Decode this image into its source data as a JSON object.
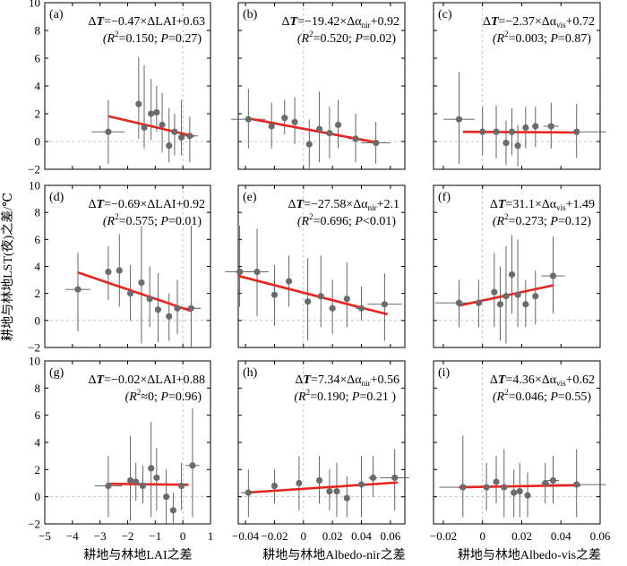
{
  "ylabel": "耕地与林地LST(夜)之差/℃",
  "xlabels": [
    "耕地与林地LAI之差",
    "耕地与林地Albedo-nir之差",
    "耕地与林地Albedo-vis之差"
  ],
  "colors": {
    "point": "#6b6b6b",
    "fit": "#e8241f",
    "ref": "#b8b8b8",
    "err": "#555555"
  },
  "chart_data": [
    {
      "id": "a",
      "tag": "(a)",
      "col": 0,
      "row": 0,
      "type": "scatter",
      "eq_pre": "Δ",
      "eq_var": "T",
      "eq_mid": "=−0.47×ΔLAI+0.63",
      "stats_r": "(R",
      "stats_rest": "=0.150; ",
      "stats_p": "P",
      "stats_pval": "=0.27)",
      "xlim": [
        -5,
        1
      ],
      "ylim": [
        -2,
        10
      ],
      "fit": {
        "x1": -2.7,
        "y1": 1.82,
        "x2": 0.4,
        "y2": 0.38
      },
      "points": [
        {
          "x": -2.7,
          "y": 0.7,
          "xerr": 0.6,
          "ylo": -1.6,
          "yhi": 3.0
        },
        {
          "x": -1.6,
          "y": 2.7,
          "xerr": 0.05,
          "ylo": 0.2,
          "yhi": 6.1
        },
        {
          "x": -1.4,
          "y": 1.0,
          "xerr": 0.05,
          "ylo": -0.5,
          "yhi": 5.5
        },
        {
          "x": -1.15,
          "y": 2.0,
          "xerr": 0.05,
          "ylo": 0.1,
          "yhi": 4.5
        },
        {
          "x": -0.95,
          "y": 2.1,
          "xerr": 0.05,
          "ylo": 0.7,
          "yhi": 4.0
        },
        {
          "x": -0.75,
          "y": 1.2,
          "xerr": 0.05,
          "ylo": -0.8,
          "yhi": 3.5
        },
        {
          "x": -0.5,
          "y": -0.3,
          "xerr": 0.05,
          "ylo": -1.5,
          "yhi": 2.4
        },
        {
          "x": -0.3,
          "y": 0.7,
          "xerr": 0.05,
          "ylo": -1.0,
          "yhi": 2.0
        },
        {
          "x": -0.05,
          "y": 0.3,
          "xerr": 0.05,
          "ylo": -1.0,
          "yhi": 3.0
        },
        {
          "x": 0.25,
          "y": 0.4,
          "xerr": 0.3,
          "ylo": -1.5,
          "yhi": 1.8
        }
      ]
    },
    {
      "id": "b",
      "tag": "(b)",
      "col": 1,
      "row": 0,
      "type": "scatter",
      "eq_pre": "Δ",
      "eq_var": "T",
      "eq_mid": "=−19.42×Δα",
      "eq_sub": "nir",
      "eq_post": "+0.92",
      "stats_r": "(R",
      "stats_rest": "=0.520; ",
      "stats_p": "P",
      "stats_pval": "=0.02)",
      "xlim": [
        -0.045,
        0.07
      ],
      "ylim": [
        -2,
        10
      ],
      "fit": {
        "x1": -0.04,
        "y1": 1.7,
        "x2": 0.052,
        "y2": -0.1
      },
      "points": [
        {
          "x": -0.038,
          "y": 1.6,
          "xerr": 0.012,
          "ylo": -0.5,
          "yhi": 3.8
        },
        {
          "x": -0.022,
          "y": 1.1,
          "xerr": 0.002,
          "ylo": -0.5,
          "yhi": 2.8
        },
        {
          "x": -0.013,
          "y": 1.7,
          "xerr": 0.002,
          "ylo": 0.5,
          "yhi": 3.0
        },
        {
          "x": -0.006,
          "y": 1.4,
          "xerr": 0.002,
          "ylo": -0.2,
          "yhi": 3.2
        },
        {
          "x": 0.004,
          "y": -0.2,
          "xerr": 0.002,
          "ylo": -2.0,
          "yhi": 1.6
        },
        {
          "x": 0.011,
          "y": 0.9,
          "xerr": 0.002,
          "ylo": -1.5,
          "yhi": 3.6
        },
        {
          "x": 0.018,
          "y": 0.6,
          "xerr": 0.002,
          "ylo": -1.2,
          "yhi": 2.5
        },
        {
          "x": 0.024,
          "y": 1.2,
          "xerr": 0.002,
          "ylo": -0.5,
          "yhi": 3.0
        },
        {
          "x": 0.036,
          "y": 0.2,
          "xerr": 0.005,
          "ylo": -1.5,
          "yhi": 2.0
        },
        {
          "x": 0.05,
          "y": -0.1,
          "xerr": 0.01,
          "ylo": -1.6,
          "yhi": 1.4
        }
      ]
    },
    {
      "id": "c",
      "tag": "(c)",
      "col": 2,
      "row": 0,
      "type": "scatter",
      "eq_pre": "Δ",
      "eq_var": "T",
      "eq_mid": "=−2.37×Δα",
      "eq_sub": "vis",
      "eq_post": "+0.72",
      "stats_r": "(R",
      "stats_rest": "=0.003; ",
      "stats_p": "P",
      "stats_pval": "=0.87)",
      "xlim": [
        -0.025,
        0.06
      ],
      "ylim": [
        -2,
        10
      ],
      "fit": {
        "x1": -0.01,
        "y1": 0.7,
        "x2": 0.048,
        "y2": 0.65
      },
      "points": [
        {
          "x": -0.012,
          "y": 1.6,
          "xerr": 0.008,
          "ylo": -1.6,
          "yhi": 5.0
        },
        {
          "x": 0.0,
          "y": 0.7,
          "xerr": 0.001,
          "ylo": -1.0,
          "yhi": 2.5
        },
        {
          "x": 0.007,
          "y": 0.7,
          "xerr": 0.001,
          "ylo": -1.2,
          "yhi": 2.6
        },
        {
          "x": 0.012,
          "y": -0.1,
          "xerr": 0.001,
          "ylo": -1.7,
          "yhi": 1.5
        },
        {
          "x": 0.015,
          "y": 0.7,
          "xerr": 0.001,
          "ylo": -1.0,
          "yhi": 2.4
        },
        {
          "x": 0.018,
          "y": -0.3,
          "xerr": 0.001,
          "ylo": -1.8,
          "yhi": 1.2
        },
        {
          "x": 0.022,
          "y": 1.0,
          "xerr": 0.001,
          "ylo": -0.5,
          "yhi": 2.5
        },
        {
          "x": 0.027,
          "y": 1.1,
          "xerr": 0.001,
          "ylo": -0.4,
          "yhi": 2.5
        },
        {
          "x": 0.035,
          "y": 1.1,
          "xerr": 0.004,
          "ylo": -0.5,
          "yhi": 2.8
        },
        {
          "x": 0.048,
          "y": 0.7,
          "xerr": 0.015,
          "ylo": -1.2,
          "yhi": 2.7
        }
      ]
    },
    {
      "id": "d",
      "tag": "(d)",
      "col": 0,
      "row": 1,
      "type": "scatter",
      "eq_pre": "Δ",
      "eq_var": "T",
      "eq_mid": "=−0.69×ΔLAI+0.92",
      "stats_r": "(R",
      "stats_rest": "=0.575; ",
      "stats_p": "P",
      "stats_pval": "=0.01)",
      "xlim": [
        -5,
        1
      ],
      "ylim": [
        -2,
        10
      ],
      "fit": {
        "x1": -3.8,
        "y1": 3.55,
        "x2": 0.3,
        "y2": 0.7
      },
      "points": [
        {
          "x": -3.8,
          "y": 2.3,
          "xerr": 0.45,
          "ylo": -0.8,
          "yhi": 5.0
        },
        {
          "x": -2.7,
          "y": 3.6,
          "xerr": 0.05,
          "ylo": 1.5,
          "yhi": 5.5
        },
        {
          "x": -2.3,
          "y": 3.7,
          "xerr": 0.05,
          "ylo": 1.0,
          "yhi": 6.4
        },
        {
          "x": -1.9,
          "y": 2.0,
          "xerr": 0.05,
          "ylo": 0.0,
          "yhi": 4.1
        },
        {
          "x": -1.5,
          "y": 2.8,
          "xerr": 0.05,
          "ylo": -1.7,
          "yhi": 7.0
        },
        {
          "x": -1.2,
          "y": 1.6,
          "xerr": 0.05,
          "ylo": -0.5,
          "yhi": 4.0
        },
        {
          "x": -0.9,
          "y": 0.8,
          "xerr": 0.05,
          "ylo": -1.6,
          "yhi": 3.5
        },
        {
          "x": -0.5,
          "y": 0.3,
          "xerr": 0.05,
          "ylo": -1.5,
          "yhi": 2.0
        },
        {
          "x": -0.2,
          "y": 0.9,
          "xerr": 0.05,
          "ylo": -1.0,
          "yhi": 3.0
        },
        {
          "x": 0.3,
          "y": 0.9,
          "xerr": 0.35,
          "ylo": -2.0,
          "yhi": 7.0
        }
      ]
    },
    {
      "id": "e",
      "tag": "(e)",
      "col": 1,
      "row": 1,
      "type": "scatter",
      "eq_pre": "Δ",
      "eq_var": "T",
      "eq_mid": "=−27.58×Δα",
      "eq_sub": "nir",
      "eq_post": "+2.1",
      "stats_r": "(R",
      "stats_rest": "=0.696; ",
      "stats_p": "P",
      "stats_pval": "<0.01)",
      "xlim": [
        -0.045,
        0.07
      ],
      "ylim": [
        -2,
        10
      ],
      "fit": {
        "x1": -0.045,
        "y1": 3.3,
        "x2": 0.058,
        "y2": 0.45
      },
      "points": [
        {
          "x": -0.044,
          "y": 3.6,
          "xerr": 0.01,
          "ylo": 1.0,
          "yhi": 7.0
        },
        {
          "x": -0.032,
          "y": 3.6,
          "xerr": 0.008,
          "ylo": 0.3,
          "yhi": 6.8
        },
        {
          "x": -0.02,
          "y": 1.9,
          "xerr": 0.002,
          "ylo": -0.4,
          "yhi": 4.1
        },
        {
          "x": -0.01,
          "y": 2.9,
          "xerr": 0.002,
          "ylo": 1.0,
          "yhi": 4.8
        },
        {
          "x": 0.003,
          "y": 1.4,
          "xerr": 0.002,
          "ylo": -1.5,
          "yhi": 4.6
        },
        {
          "x": 0.012,
          "y": 1.8,
          "xerr": 0.002,
          "ylo": -0.5,
          "yhi": 4.8
        },
        {
          "x": 0.02,
          "y": 0.9,
          "xerr": 0.002,
          "ylo": -1.0,
          "yhi": 3.0
        },
        {
          "x": 0.03,
          "y": 1.6,
          "xerr": 0.002,
          "ylo": -0.5,
          "yhi": 4.3
        },
        {
          "x": 0.04,
          "y": 0.9,
          "xerr": 0.004,
          "ylo": 0.0,
          "yhi": 2.5
        },
        {
          "x": 0.056,
          "y": 1.2,
          "xerr": 0.012,
          "ylo": -1.5,
          "yhi": 3.5
        }
      ]
    },
    {
      "id": "f",
      "tag": "(f)",
      "col": 2,
      "row": 1,
      "type": "scatter",
      "eq_pre": "Δ",
      "eq_var": "T",
      "eq_mid": "=31.1×Δα",
      "eq_sub": "vis",
      "eq_post": "+1.49",
      "stats_r": "(R",
      "stats_rest": "=0.273; ",
      "stats_p": "P",
      "stats_pval": "=0.12)",
      "xlim": [
        -0.025,
        0.06
      ],
      "ylim": [
        -2,
        10
      ],
      "fit": {
        "x1": -0.012,
        "y1": 1.1,
        "x2": 0.036,
        "y2": 2.6
      },
      "points": [
        {
          "x": -0.012,
          "y": 1.3,
          "xerr": 0.012,
          "ylo": -0.5,
          "yhi": 3.0
        },
        {
          "x": -0.002,
          "y": 1.3,
          "xerr": 0.001,
          "ylo": -0.5,
          "yhi": 3.0
        },
        {
          "x": 0.006,
          "y": 2.1,
          "xerr": 0.001,
          "ylo": -0.5,
          "yhi": 5.0
        },
        {
          "x": 0.009,
          "y": 1.2,
          "xerr": 0.001,
          "ylo": -1.5,
          "yhi": 4.0
        },
        {
          "x": 0.012,
          "y": 1.8,
          "xerr": 0.001,
          "ylo": -1.7,
          "yhi": 5.5
        },
        {
          "x": 0.015,
          "y": 3.4,
          "xerr": 0.001,
          "ylo": 0.5,
          "yhi": 6.3
        },
        {
          "x": 0.018,
          "y": 1.9,
          "xerr": 0.001,
          "ylo": -0.5,
          "yhi": 6.0
        },
        {
          "x": 0.022,
          "y": 1.2,
          "xerr": 0.001,
          "ylo": -0.5,
          "yhi": 3.0
        },
        {
          "x": 0.027,
          "y": 1.8,
          "xerr": 0.001,
          "ylo": -0.3,
          "yhi": 3.7
        },
        {
          "x": 0.036,
          "y": 3.3,
          "xerr": 0.006,
          "ylo": 0.5,
          "yhi": 6.2
        }
      ]
    },
    {
      "id": "g",
      "tag": "(g)",
      "col": 0,
      "row": 2,
      "type": "scatter",
      "eq_pre": "Δ",
      "eq_var": "T",
      "eq_mid": "=−0.02×ΔLAI+0.88",
      "stats_r": "(R",
      "stats_rest": "≈0; ",
      "stats_p": "P",
      "stats_pval": "=0.96)",
      "xlim": [
        -5,
        1
      ],
      "ylim": [
        -2,
        10
      ],
      "fit": {
        "x1": -2.7,
        "y1": 0.95,
        "x2": 0.2,
        "y2": 0.88
      },
      "points": [
        {
          "x": -2.7,
          "y": 0.8,
          "xerr": 0.5,
          "ylo": -1.5,
          "yhi": 3.0
        },
        {
          "x": -1.9,
          "y": 1.2,
          "xerr": 0.05,
          "ylo": -1.8,
          "yhi": 4.5
        },
        {
          "x": -1.7,
          "y": 1.1,
          "xerr": 0.05,
          "ylo": -0.3,
          "yhi": 2.5
        },
        {
          "x": -1.45,
          "y": 0.8,
          "xerr": 0.05,
          "ylo": -0.5,
          "yhi": 2.3
        },
        {
          "x": -1.15,
          "y": 2.1,
          "xerr": 0.05,
          "ylo": -1.5,
          "yhi": 5.5
        },
        {
          "x": -0.95,
          "y": 1.4,
          "xerr": 0.05,
          "ylo": -1.0,
          "yhi": 3.6
        },
        {
          "x": -0.6,
          "y": 0.0,
          "xerr": 0.05,
          "ylo": -2.0,
          "yhi": 2.0
        },
        {
          "x": -0.35,
          "y": -1.0,
          "xerr": 0.05,
          "ylo": -2.0,
          "yhi": 0.3
        },
        {
          "x": -0.05,
          "y": 0.8,
          "xerr": 0.05,
          "ylo": -1.0,
          "yhi": 2.5
        },
        {
          "x": 0.35,
          "y": 2.3,
          "xerr": 0.25,
          "ylo": -1.5,
          "yhi": 6.5
        }
      ]
    },
    {
      "id": "h",
      "tag": "(h)",
      "col": 1,
      "row": 2,
      "type": "scatter",
      "eq_pre": "Δ",
      "eq_var": "T",
      "eq_mid": "=7.34×Δα",
      "eq_sub": "nir",
      "eq_post": "+0.56",
      "stats_r": "(R",
      "stats_rest": "=0.190; ",
      "stats_p": "P",
      "stats_pval": "=0.21 )",
      "xlim": [
        -0.045,
        0.07
      ],
      "ylim": [
        -2,
        10
      ],
      "fit": {
        "x1": -0.04,
        "y1": 0.3,
        "x2": 0.065,
        "y2": 1.05
      },
      "points": [
        {
          "x": -0.038,
          "y": 0.3,
          "xerr": 0.005,
          "ylo": -1.5,
          "yhi": 2.0
        },
        {
          "x": -0.02,
          "y": 0.8,
          "xerr": 0.002,
          "ylo": -0.5,
          "yhi": 2.0
        },
        {
          "x": -0.003,
          "y": 1.0,
          "xerr": 0.002,
          "ylo": -1.0,
          "yhi": 3.0
        },
        {
          "x": 0.011,
          "y": 1.2,
          "xerr": 0.002,
          "ylo": -0.5,
          "yhi": 3.0
        },
        {
          "x": 0.018,
          "y": 0.4,
          "xerr": 0.002,
          "ylo": -1.0,
          "yhi": 2.0
        },
        {
          "x": 0.023,
          "y": 0.4,
          "xerr": 0.002,
          "ylo": -1.5,
          "yhi": 2.5
        },
        {
          "x": 0.03,
          "y": -0.1,
          "xerr": 0.002,
          "ylo": -1.5,
          "yhi": 1.5
        },
        {
          "x": 0.04,
          "y": 0.9,
          "xerr": 0.004,
          "ylo": -1.5,
          "yhi": 3.0
        },
        {
          "x": 0.048,
          "y": 1.4,
          "xerr": 0.003,
          "ylo": 0.0,
          "yhi": 3.0
        },
        {
          "x": 0.063,
          "y": 1.4,
          "xerr": 0.01,
          "ylo": -1.0,
          "yhi": 3.5
        }
      ]
    },
    {
      "id": "i",
      "tag": "(i)",
      "col": 2,
      "row": 2,
      "type": "scatter",
      "eq_pre": "Δ",
      "eq_var": "T",
      "eq_mid": "=4.36×Δα",
      "eq_sub": "vis",
      "eq_post": "+0.62",
      "stats_r": "(R",
      "stats_rest": "=0.046; ",
      "stats_p": "P",
      "stats_pval": "=0.55)",
      "xlim": [
        -0.025,
        0.06
      ],
      "ylim": [
        -2,
        10
      ],
      "fit": {
        "x1": -0.012,
        "y1": 0.7,
        "x2": 0.05,
        "y2": 0.85
      },
      "points": [
        {
          "x": -0.01,
          "y": 0.7,
          "xerr": 0.012,
          "ylo": -1.5,
          "yhi": 4.5
        },
        {
          "x": 0.002,
          "y": 0.7,
          "xerr": 0.001,
          "ylo": -1.0,
          "yhi": 2.5
        },
        {
          "x": 0.007,
          "y": 1.1,
          "xerr": 0.001,
          "ylo": -0.5,
          "yhi": 3.0
        },
        {
          "x": 0.011,
          "y": 0.7,
          "xerr": 0.001,
          "ylo": -1.5,
          "yhi": 3.5
        },
        {
          "x": 0.016,
          "y": 0.3,
          "xerr": 0.001,
          "ylo": -1.5,
          "yhi": 2.0
        },
        {
          "x": 0.019,
          "y": 0.4,
          "xerr": 0.001,
          "ylo": -1.5,
          "yhi": 2.5
        },
        {
          "x": 0.023,
          "y": 0.1,
          "xerr": 0.001,
          "ylo": -1.5,
          "yhi": 1.8
        },
        {
          "x": 0.032,
          "y": 1.0,
          "xerr": 0.002,
          "ylo": -0.5,
          "yhi": 2.5
        },
        {
          "x": 0.036,
          "y": 1.2,
          "xerr": 0.003,
          "ylo": -0.5,
          "yhi": 3.0
        },
        {
          "x": 0.048,
          "y": 0.9,
          "xerr": 0.015,
          "ylo": -1.5,
          "yhi": 3.5
        }
      ]
    }
  ],
  "yticks": [
    -2,
    0,
    2,
    4,
    6,
    8,
    10
  ],
  "xticks": [
    {
      "values": [
        -5,
        -4,
        -3,
        -2,
        -1,
        0,
        1
      ],
      "labels": [
        "−5",
        "−4",
        "−3",
        "−2",
        "−1",
        "0",
        "1"
      ]
    },
    {
      "values": [
        -0.04,
        -0.02,
        0,
        0.02,
        0.04,
        0.06
      ],
      "labels": [
        "−0.04",
        "−0.02",
        "0",
        "0.02",
        "0.04",
        "0.06"
      ]
    },
    {
      "values": [
        -0.02,
        0,
        0.02,
        0.04,
        0.06
      ],
      "labels": [
        "−0.02",
        "0",
        "0.02",
        "0.04",
        "0.06"
      ]
    }
  ]
}
